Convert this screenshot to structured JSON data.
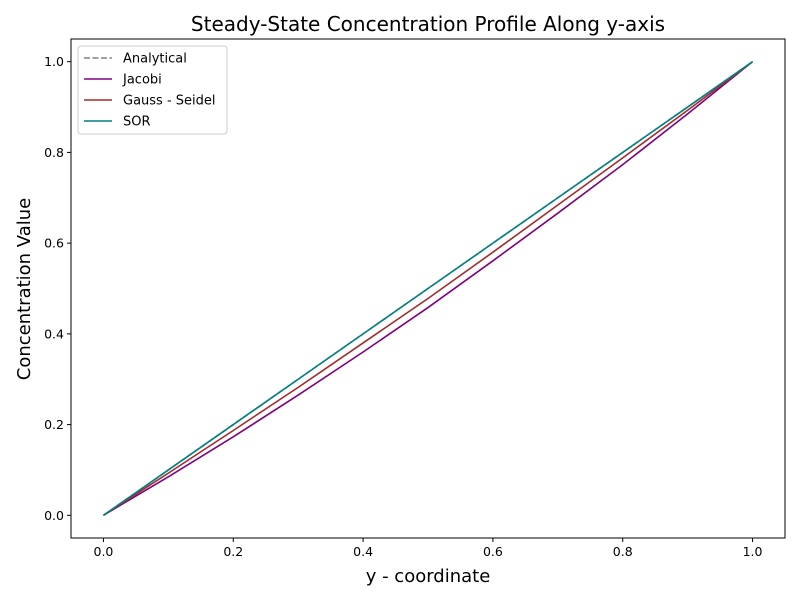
{
  "chart_data": {
    "type": "line",
    "title": "Steady-State Concentration Profile Along y-axis",
    "xlabel": "y - coordinate",
    "ylabel": "Concentration Value",
    "xlim": [
      -0.05,
      1.05
    ],
    "ylim": [
      -0.05,
      1.05
    ],
    "xticks": [
      0.0,
      0.2,
      0.4,
      0.6,
      0.8,
      1.0
    ],
    "yticks": [
      0.0,
      0.2,
      0.4,
      0.6,
      0.8,
      1.0
    ],
    "xtick_labels": [
      "0.0",
      "0.2",
      "0.4",
      "0.6",
      "0.8",
      "1.0"
    ],
    "ytick_labels": [
      "0.0",
      "0.2",
      "0.4",
      "0.6",
      "0.8",
      "1.0"
    ],
    "grid": false,
    "legend_position": "top-left",
    "x": [
      0.0,
      0.1,
      0.2,
      0.3,
      0.4,
      0.5,
      0.6,
      0.7,
      0.8,
      0.9,
      1.0
    ],
    "series": [
      {
        "name": "Analytical",
        "color": "#808080",
        "style": "dashed",
        "values": [
          0.0,
          0.1,
          0.2,
          0.3,
          0.4,
          0.5,
          0.6,
          0.7,
          0.8,
          0.9,
          1.0
        ]
      },
      {
        "name": "Jacobi",
        "color": "#800080",
        "style": "solid",
        "values": [
          0.0,
          0.085,
          0.173,
          0.265,
          0.36,
          0.458,
          0.561,
          0.666,
          0.773,
          0.885,
          1.0
        ]
      },
      {
        "name": "Gauss - Seidel",
        "color": "#a52a2a",
        "style": "solid",
        "values": [
          0.0,
          0.093,
          0.187,
          0.282,
          0.38,
          0.478,
          0.58,
          0.684,
          0.788,
          0.893,
          1.0
        ]
      },
      {
        "name": "SOR",
        "color": "#008080",
        "style": "solid",
        "values": [
          0.0,
          0.1,
          0.2,
          0.3,
          0.4,
          0.5,
          0.6,
          0.7,
          0.8,
          0.9,
          1.0
        ]
      }
    ]
  }
}
